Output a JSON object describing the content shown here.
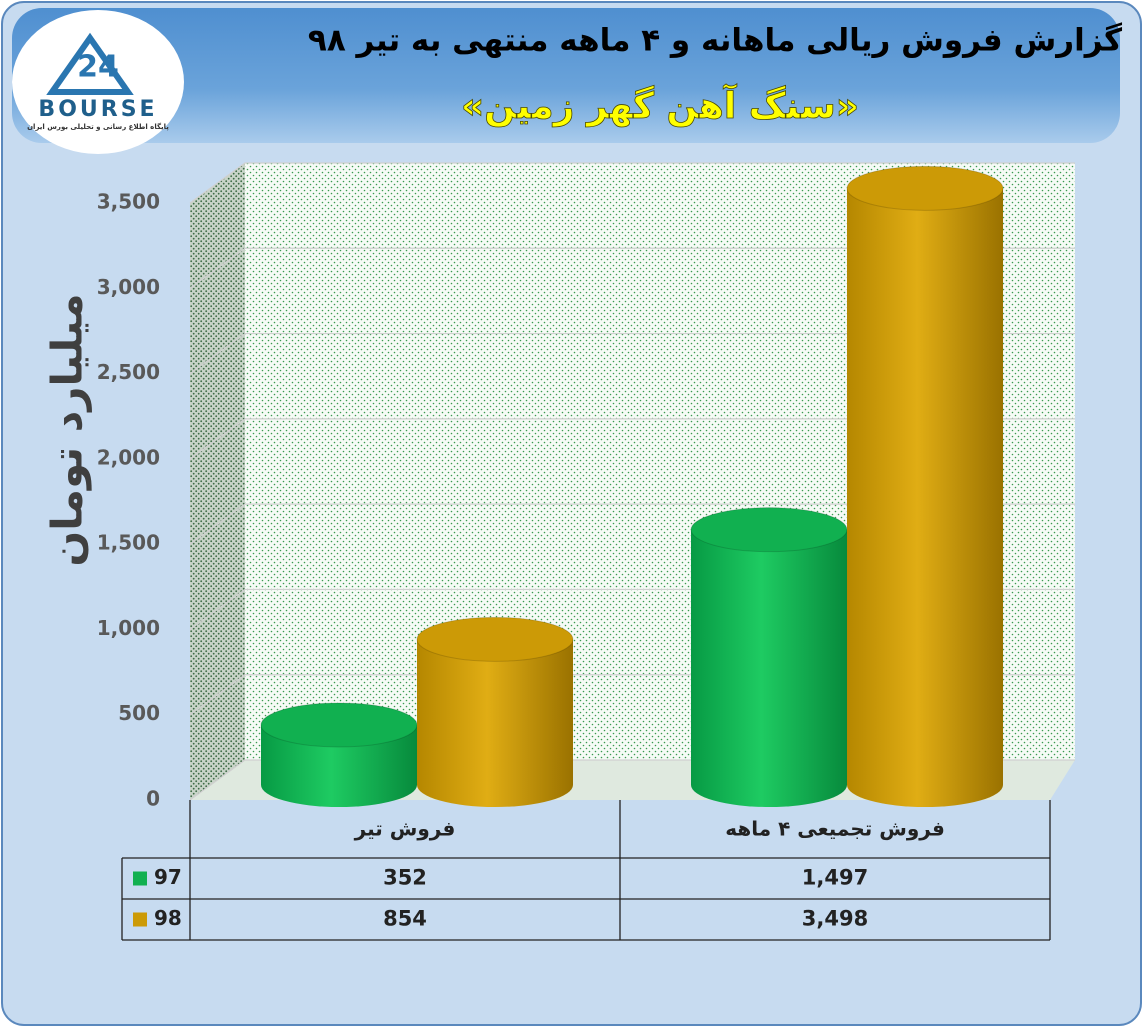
{
  "logo": {
    "mark": "24",
    "name": "BOURSE",
    "tagline": "پایگاه اطلاع رسانی و تحلیلی بورس ایران"
  },
  "chart_data": {
    "type": "bar",
    "title": "گزارش فروش ریالی ماهانه و ۴ ماهه منتهی به تیر ۹۸",
    "subtitle": "«سنگ آهن گهر زمین»",
    "y_label": "میلیارد تومان",
    "categories": [
      "فروش تیر",
      "فروش تجمیعی ۴ ماهه"
    ],
    "series": [
      {
        "name": "97",
        "color": "#11b050",
        "values": [
          352,
          1497
        ],
        "value_labels": [
          "352",
          "1,497"
        ]
      },
      {
        "name": "98",
        "color": "#cc9a06",
        "values": [
          854,
          3498
        ],
        "value_labels": [
          "854",
          "3,498"
        ]
      }
    ],
    "ylim": [
      0,
      3500
    ],
    "yticks": [
      0,
      500,
      {
        "value": 1000,
        "label": "1,000"
      },
      {
        "value": 1500,
        "label": "1,500"
      },
      {
        "value": 2000,
        "label": "2,000"
      },
      {
        "value": 2500,
        "label": "2,500"
      },
      {
        "value": 3000,
        "label": "3,000"
      },
      {
        "value": 3500,
        "label": "3,500"
      }
    ],
    "grid": true
  }
}
